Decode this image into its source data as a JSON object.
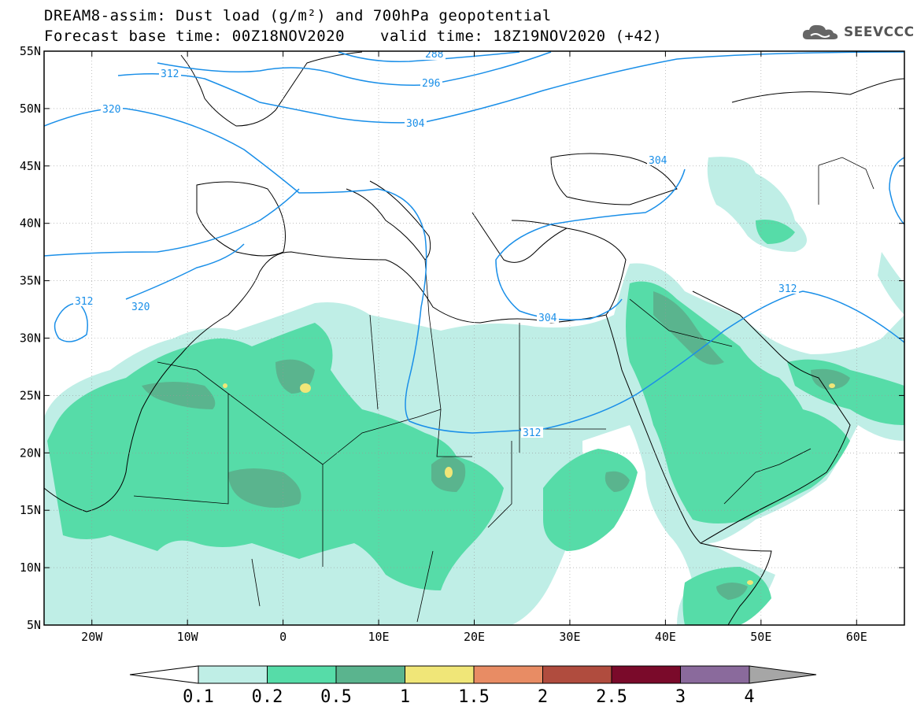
{
  "title": {
    "line1": "DREAM8-assim: Dust load (g/m²) and 700hPa geopotential",
    "line2": "Forecast base time: 00Z18NOV2020",
    "valid": "valid time: 18Z19NOV2020 (+42)"
  },
  "logo": {
    "text": "SEEVCCC",
    "icon": "cloud-logo-icon"
  },
  "map": {
    "lon_range": [
      -25,
      65
    ],
    "lat_range": [
      5,
      55
    ],
    "lat_labels": [
      "55N",
      "50N",
      "45N",
      "40N",
      "35N",
      "30N",
      "25N",
      "20N",
      "15N",
      "10N",
      "5N"
    ],
    "lat_values": [
      55,
      50,
      45,
      40,
      35,
      30,
      25,
      20,
      15,
      10,
      5
    ],
    "lon_labels": [
      "20W",
      "10W",
      "0",
      "10E",
      "20E",
      "30E",
      "40E",
      "50E",
      "60E"
    ],
    "lon_values": [
      -20,
      -10,
      0,
      10,
      20,
      30,
      40,
      50,
      60
    ]
  },
  "contours": [
    {
      "label": "288",
      "color": "#1a8fe8"
    },
    {
      "label": "296",
      "color": "#1a8fe8"
    },
    {
      "label": "304",
      "color": "#1a8fe8"
    },
    {
      "label": "312",
      "color": "#1a8fe8"
    },
    {
      "label": "320",
      "color": "#1a8fe8"
    }
  ],
  "colorbar": {
    "labels": [
      "0.1",
      "0.2",
      "0.5",
      "1",
      "1.5",
      "2",
      "2.5",
      "3",
      "4"
    ],
    "colors": [
      "#bfeee6",
      "#56dca8",
      "#5ab48e",
      "#f0e678",
      "#e88c64",
      "#b04c3e",
      "#7a0a2a",
      "#8a6a9c",
      "#a6a6a6"
    ],
    "under_color": "#ffffff"
  }
}
